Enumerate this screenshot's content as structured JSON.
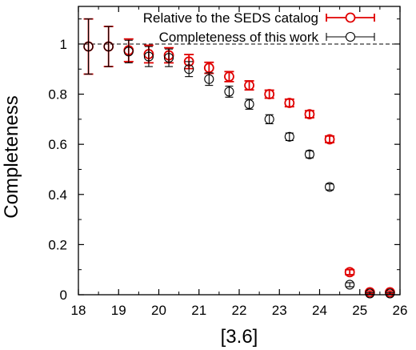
{
  "chart_data": {
    "type": "scatter",
    "title": "",
    "xlabel": "[3.6]",
    "ylabel": "Completeness",
    "xlim": [
      18,
      26
    ],
    "ylim": [
      0,
      1.15
    ],
    "x_ticks": [
      18,
      19,
      20,
      21,
      22,
      23,
      24,
      25,
      26
    ],
    "y_ticks": [
      0,
      0.2,
      0.4,
      0.6,
      0.8,
      1
    ],
    "y_tick_labels": [
      "0",
      "0.2",
      "0.4",
      "0.6",
      "0.8",
      "1"
    ],
    "reference_line": {
      "y": 1,
      "style": "dashed"
    },
    "grid": false,
    "legend_position": "top-right",
    "series": [
      {
        "name": "Relative to the SEDS catalog",
        "color": "#e00000",
        "marker": "open-circle",
        "x": [
          18.25,
          18.75,
          19.25,
          19.75,
          20.25,
          20.75,
          21.25,
          21.75,
          22.25,
          22.75,
          23.25,
          23.75,
          24.25,
          24.75,
          25.25,
          25.75
        ],
        "y": [
          0.99,
          0.99,
          0.975,
          0.96,
          0.955,
          0.93,
          0.905,
          0.87,
          0.835,
          0.8,
          0.765,
          0.72,
          0.62,
          0.09,
          0.01,
          0.01
        ],
        "yerr": [
          0.11,
          0.08,
          0.045,
          0.035,
          0.03,
          0.028,
          0.022,
          0.02,
          0.018,
          0.016,
          0.015,
          0.014,
          0.013,
          0.01,
          0.005,
          0.005
        ]
      },
      {
        "name": "Completeness of this work",
        "color": "#000000",
        "marker": "open-circle",
        "x": [
          18.25,
          18.75,
          19.25,
          19.75,
          20.25,
          20.75,
          21.25,
          21.75,
          22.25,
          22.75,
          23.25,
          23.75,
          24.25,
          24.75,
          25.25,
          25.75
        ],
        "y": [
          0.99,
          0.99,
          0.97,
          0.95,
          0.945,
          0.9,
          0.86,
          0.81,
          0.76,
          0.7,
          0.63,
          0.56,
          0.43,
          0.04,
          0.005,
          0.005
        ],
        "yerr": [
          0.11,
          0.08,
          0.045,
          0.04,
          0.035,
          0.03,
          0.025,
          0.022,
          0.02,
          0.018,
          0.015,
          0.014,
          0.012,
          0.008,
          0.004,
          0.004
        ]
      }
    ]
  }
}
